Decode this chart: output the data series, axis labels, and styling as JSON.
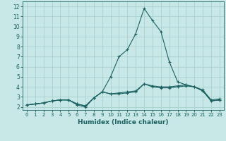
{
  "xlabel": "Humidex (Indice chaleur)",
  "bg_color": "#c8e8e8",
  "grid_color": "#a8d0d0",
  "line_color": "#1a6060",
  "xlim": [
    -0.5,
    23.5
  ],
  "ylim": [
    1.7,
    12.5
  ],
  "xticks": [
    0,
    1,
    2,
    3,
    4,
    5,
    6,
    7,
    8,
    9,
    10,
    11,
    12,
    13,
    14,
    15,
    16,
    17,
    18,
    19,
    20,
    21,
    22,
    23
  ],
  "yticks": [
    2,
    3,
    4,
    5,
    6,
    7,
    8,
    9,
    10,
    11,
    12
  ],
  "curve1_x": [
    0,
    1,
    2,
    3,
    4,
    5,
    6,
    7,
    8,
    9,
    10,
    11,
    12,
    13,
    14,
    15,
    16,
    17,
    18,
    19,
    20,
    21,
    22,
    23
  ],
  "curve1_y": [
    2.2,
    2.3,
    2.4,
    2.6,
    2.7,
    2.7,
    2.2,
    2.0,
    2.9,
    3.5,
    3.3,
    3.3,
    3.4,
    3.5,
    4.3,
    4.0,
    3.9,
    3.9,
    4.0,
    4.1,
    4.0,
    3.6,
    2.6,
    2.7
  ],
  "curve2_x": [
    0,
    1,
    2,
    3,
    4,
    5,
    6,
    7,
    8,
    9,
    10,
    11,
    12,
    13,
    14,
    15,
    16,
    17,
    18,
    19,
    20,
    21,
    22,
    23
  ],
  "curve2_y": [
    2.2,
    2.3,
    2.4,
    2.6,
    2.7,
    2.7,
    2.3,
    2.1,
    2.9,
    3.5,
    5.0,
    7.0,
    7.7,
    9.3,
    11.8,
    10.6,
    9.5,
    6.5,
    4.5,
    4.2,
    4.0,
    3.6,
    2.6,
    2.7
  ],
  "curve3_x": [
    0,
    1,
    2,
    3,
    4,
    5,
    6,
    7,
    8,
    9,
    10,
    11,
    12,
    13,
    14,
    15,
    16,
    17,
    18,
    19,
    20,
    21,
    22,
    23
  ],
  "curve3_y": [
    2.2,
    2.3,
    2.4,
    2.6,
    2.7,
    2.7,
    2.3,
    2.1,
    2.9,
    3.5,
    3.3,
    3.4,
    3.5,
    3.6,
    4.3,
    4.1,
    4.0,
    4.0,
    4.1,
    4.2,
    4.0,
    3.7,
    2.7,
    2.8
  ]
}
